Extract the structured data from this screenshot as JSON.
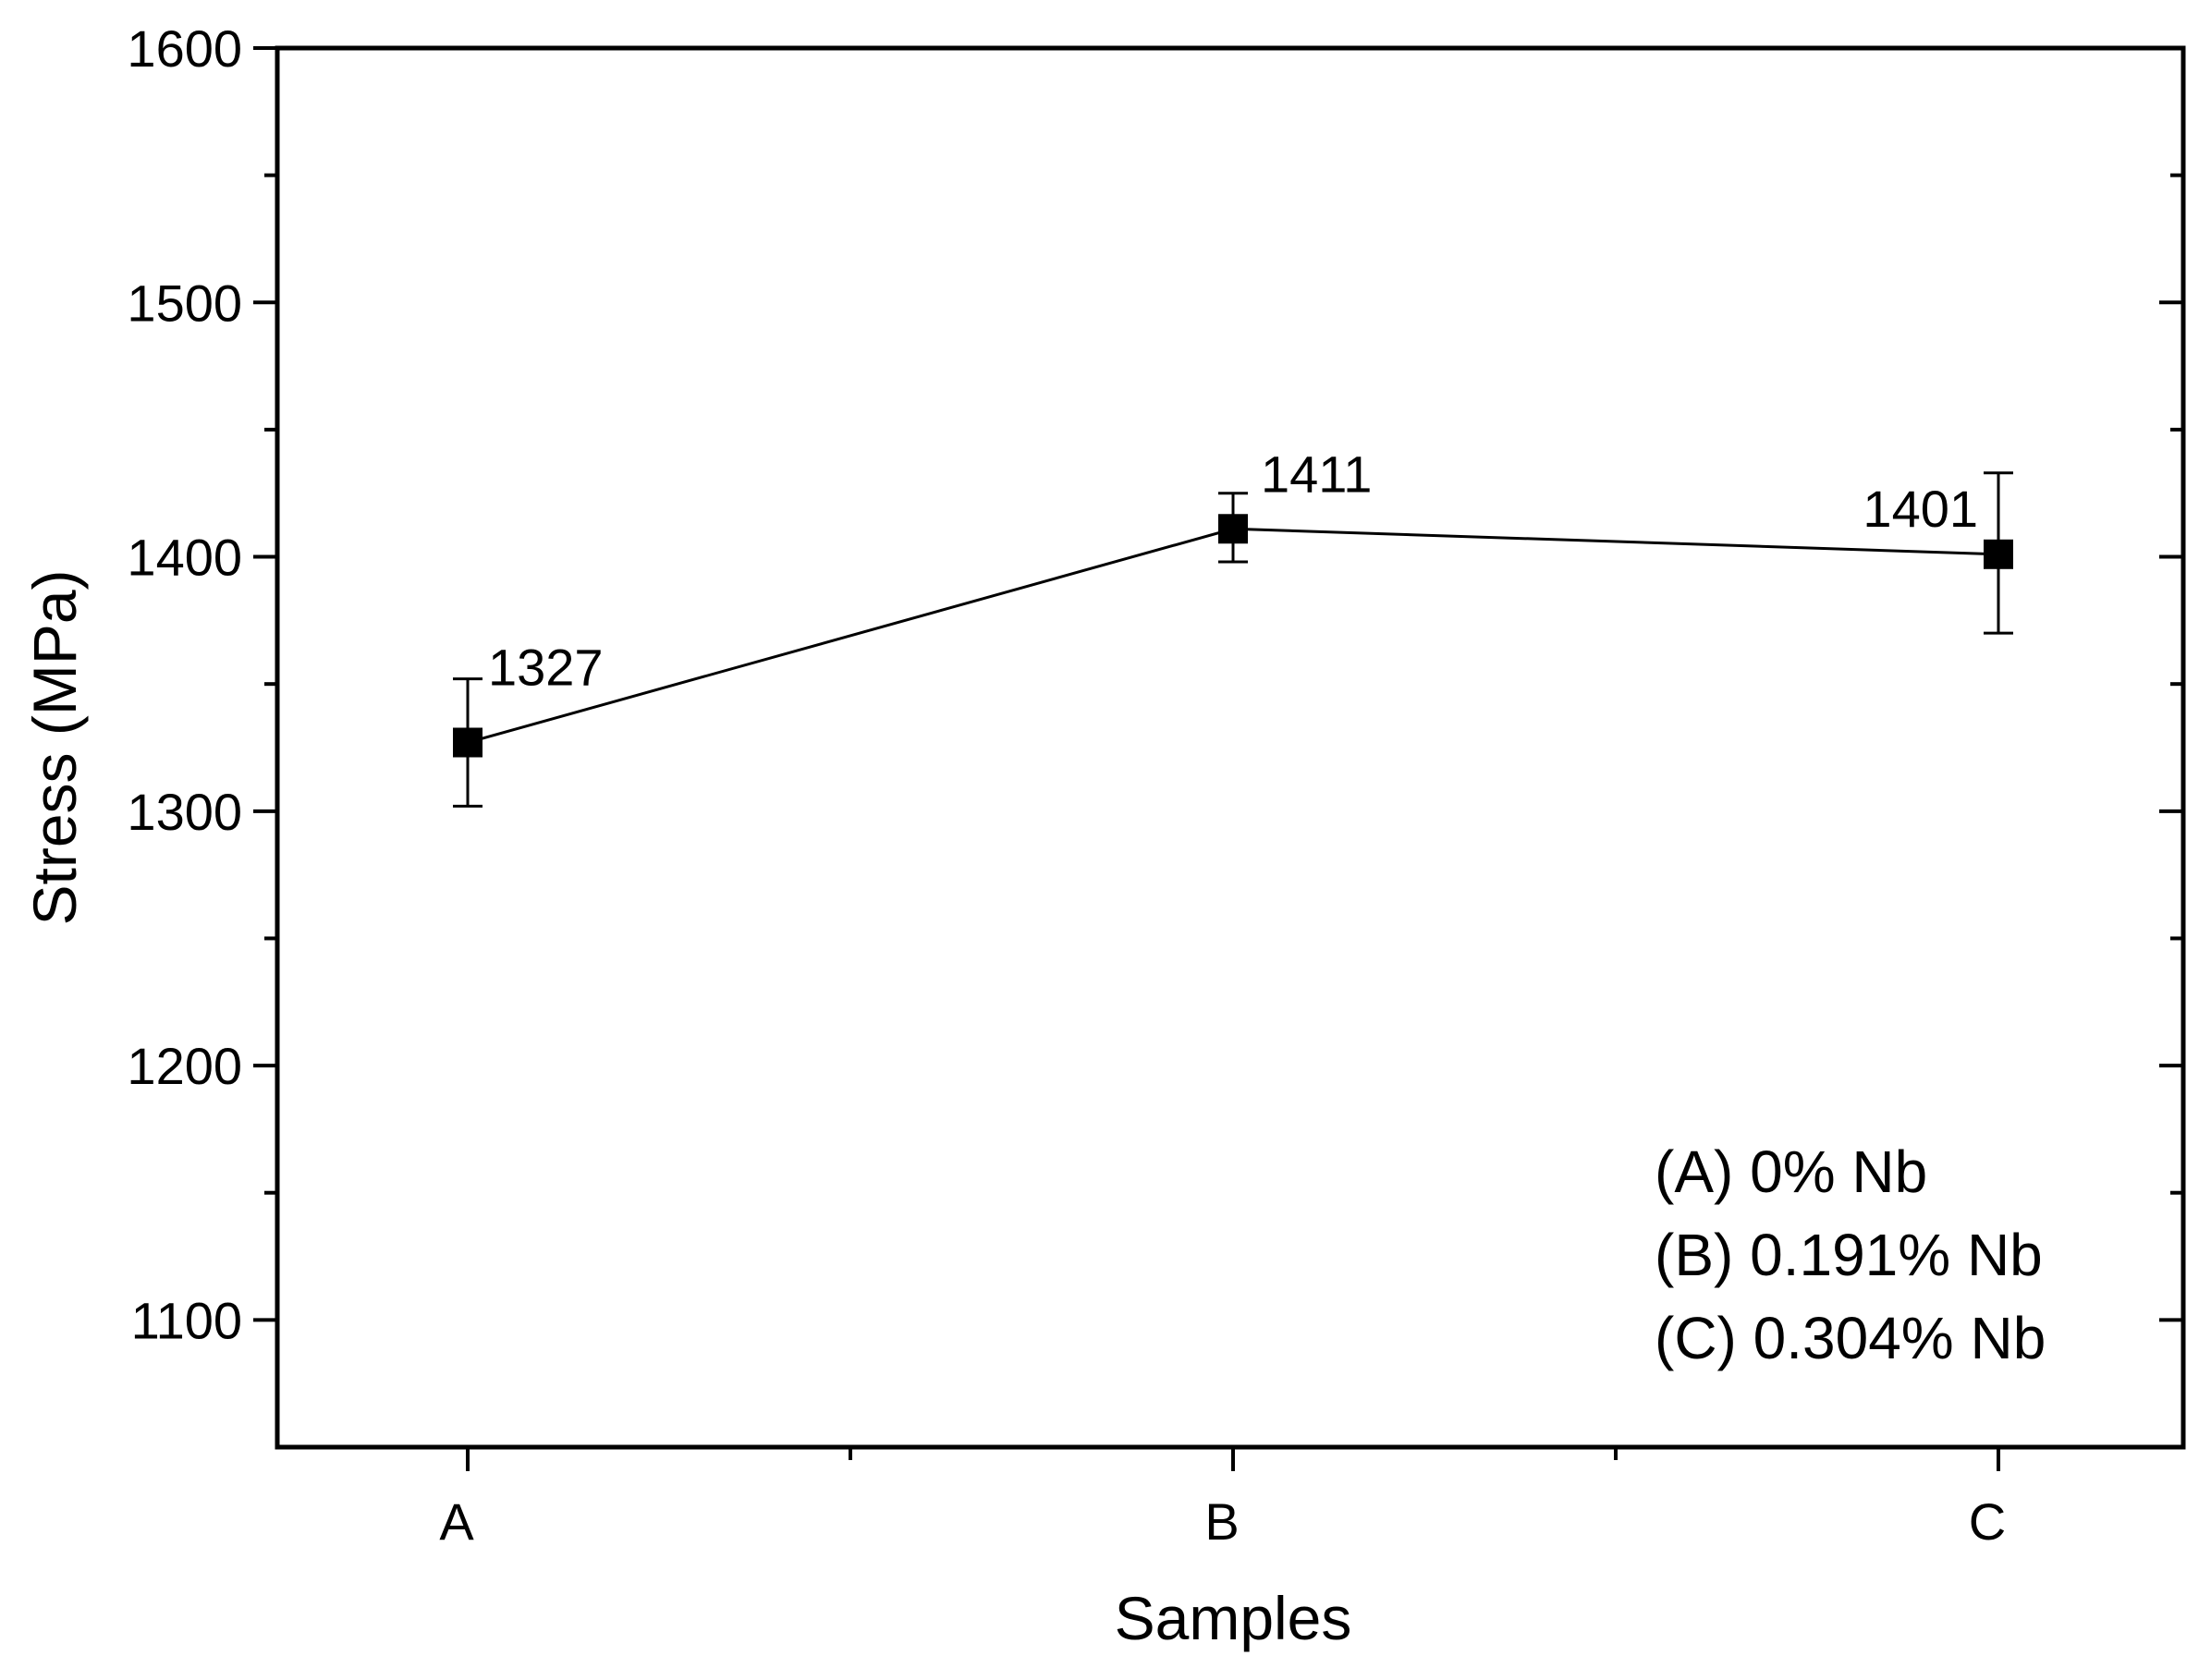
{
  "chart_data": {
    "type": "line",
    "categories": [
      "A",
      "B",
      "C"
    ],
    "series": [
      {
        "values": [
          1327,
          1411,
          1401
        ],
        "error_low": [
          1302,
          1398,
          1370
        ],
        "error_high": [
          1352,
          1425,
          1433
        ],
        "marker": "square",
        "color": "#000000"
      }
    ],
    "data_labels": [
      "1327",
      "1411",
      "1401"
    ],
    "xlabel": "Samples",
    "ylabel": "Stress (MPa)",
    "ylim": [
      1050,
      1600
    ],
    "yticks": [
      "1100",
      "1200",
      "1300",
      "1400",
      "1500",
      "1600"
    ],
    "legend": {
      "placement": "bottom-right",
      "entries": [
        "(A) 0% Nb",
        "(B) 0.191% Nb",
        "(C) 0.304% Nb"
      ]
    },
    "grid": false
  }
}
